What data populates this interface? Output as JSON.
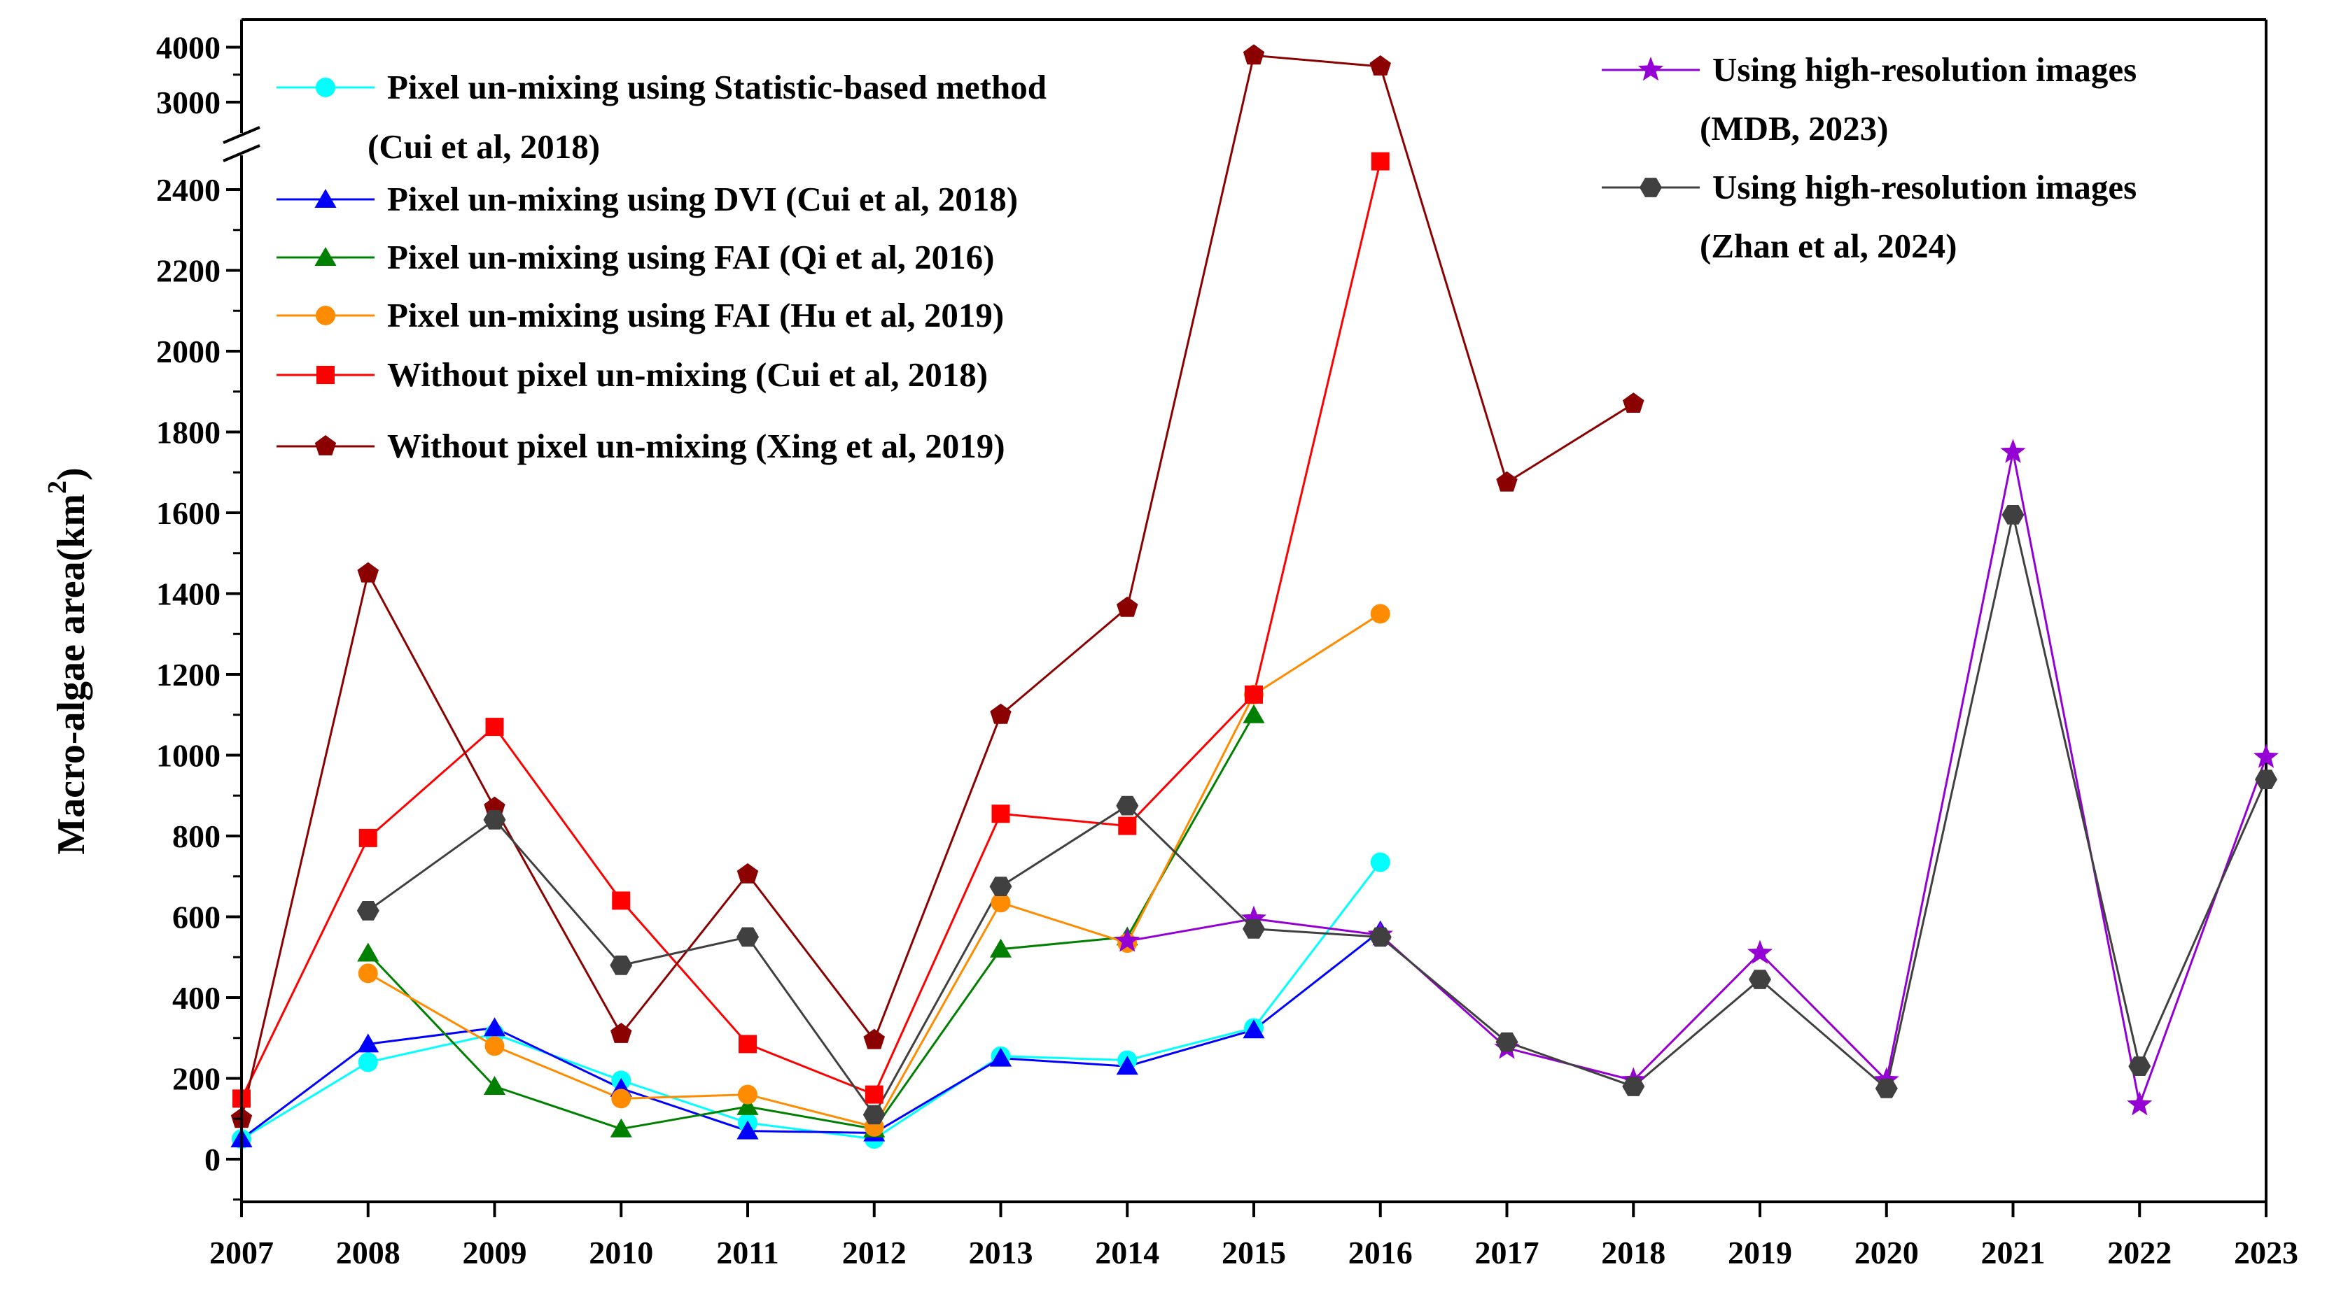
{
  "chart_data": {
    "type": "line",
    "title": "",
    "xlabel": "",
    "ylabel": "Macro-algae area(km",
    "ylabel_superscript": "2",
    "ylabel_close": ")",
    "x": [
      "2007",
      "2008",
      "2009",
      "2010",
      "2011",
      "2012",
      "2013",
      "2014",
      "2015",
      "2016",
      "2017",
      "2018",
      "2019",
      "2020",
      "2021",
      "2022",
      "2023"
    ],
    "yaxis": {
      "lower_range": [
        -100,
        2500
      ],
      "upper_range": [
        3000,
        4000
      ],
      "axis_break": [
        2500,
        3000
      ],
      "lower_ticks": [
        "0",
        "200",
        "400",
        "600",
        "800",
        "1000",
        "1200",
        "1400",
        "1600",
        "1800",
        "2000",
        "2200",
        "2400"
      ],
      "upper_ticks": [
        "3000",
        "4000"
      ]
    },
    "series": [
      {
        "name": "Pixel un-mixing using Statistic-based method",
        "name_line2": "(Cui et al, 2018)",
        "color": "#00ffff",
        "marker": "circle",
        "values": [
          50,
          240,
          310,
          195,
          90,
          50,
          255,
          245,
          325,
          735,
          null,
          null,
          null,
          null,
          null,
          null,
          null
        ]
      },
      {
        "name": "Pixel un-mixing using DVI (Cui et al, 2018)",
        "color": "#0000ff",
        "marker": "triangle",
        "values": [
          50,
          285,
          325,
          175,
          70,
          65,
          250,
          230,
          320,
          565,
          null,
          null,
          null,
          null,
          null,
          null,
          null
        ]
      },
      {
        "name": "Pixel un-mixing using FAI (Qi et al, 2016)",
        "color": "#008000",
        "marker": "triangle",
        "values": [
          null,
          510,
          180,
          75,
          130,
          75,
          520,
          550,
          1100,
          null,
          null,
          null,
          null,
          null,
          null,
          null,
          null
        ]
      },
      {
        "name": "Pixel un-mixing using FAI (Hu et al, 2019)",
        "color": "#ff8c00",
        "marker": "circle",
        "values": [
          null,
          460,
          280,
          150,
          160,
          80,
          635,
          535,
          1150,
          1350,
          null,
          null,
          null,
          null,
          null,
          null,
          null
        ]
      },
      {
        "name": "Without pixel un-mixing (Cui et al, 2018)",
        "color": "#ff0000",
        "marker": "square",
        "values": [
          150,
          795,
          1070,
          640,
          285,
          160,
          855,
          825,
          1150,
          2470,
          null,
          null,
          null,
          null,
          null,
          null,
          null
        ]
      },
      {
        "name": "Without pixel un-mixing (Xing et al, 2019)",
        "color": "#8b0000",
        "marker": "pentagon",
        "values": [
          100,
          1450,
          870,
          310,
          705,
          295,
          1100,
          1365,
          3850,
          3650,
          1675,
          1870,
          null,
          null,
          null,
          null,
          null
        ]
      },
      {
        "name": "Using high-resolution images",
        "name_line2": "(MDB, 2023)",
        "color": "#9400d3",
        "marker": "star",
        "values": [
          null,
          null,
          null,
          null,
          null,
          null,
          null,
          540,
          595,
          555,
          275,
          195,
          510,
          195,
          1750,
          135,
          995
        ]
      },
      {
        "name": "Using high-resolution images",
        "name_line2": "(Zhan et al, 2024)",
        "color": "#404040",
        "marker": "hexagon",
        "values": [
          null,
          615,
          840,
          480,
          550,
          110,
          675,
          875,
          570,
          550,
          290,
          180,
          445,
          175,
          1595,
          230,
          940
        ]
      }
    ],
    "legend_position": [
      "top-left",
      "top-right"
    ]
  }
}
